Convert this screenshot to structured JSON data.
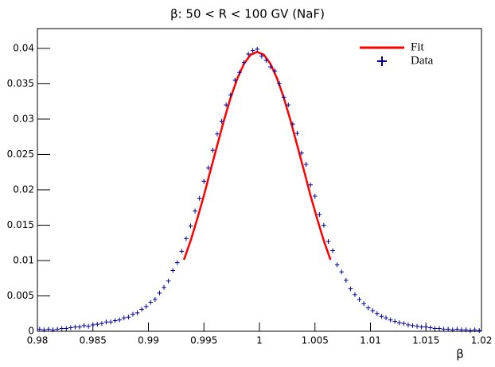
{
  "chart_data": {
    "type": "line",
    "title": "β: 50 < R < 100 GV (NaF)",
    "x_label": "β",
    "xlim": [
      0.98,
      1.02
    ],
    "ylim": [
      0,
      0.0428
    ],
    "xticks": [
      0.98,
      0.985,
      0.99,
      0.995,
      1,
      1.005,
      1.01,
      1.015,
      1.02
    ],
    "yticks": [
      0,
      0.005,
      0.01,
      0.015,
      0.02,
      0.025,
      0.03,
      0.035,
      0.04
    ],
    "legend": "top-right",
    "series": [
      {
        "name": "Fit",
        "color": "#ff0000",
        "kind": "line",
        "x": [
          0.9932,
          0.9938,
          0.9944,
          0.995,
          0.9956,
          0.9962,
          0.9968,
          0.9974,
          0.998,
          0.9986,
          0.9992,
          0.9998,
          1.0004,
          1.001,
          1.0016,
          1.0022,
          1.0028,
          1.0034,
          1.004,
          1.0046,
          1.0052,
          1.0058,
          1.0064
        ],
        "values": [
          0.0101,
          0.0128,
          0.0159,
          0.0192,
          0.0228,
          0.0263,
          0.0298,
          0.033,
          0.0357,
          0.0378,
          0.0391,
          0.0395,
          0.0391,
          0.0378,
          0.0357,
          0.033,
          0.0298,
          0.0263,
          0.0228,
          0.0192,
          0.0159,
          0.0128,
          0.0101
        ]
      },
      {
        "name": "Data",
        "color": "#000099",
        "kind": "marker",
        "x": [
          0.9802,
          0.9806,
          0.981,
          0.9814,
          0.9818,
          0.9822,
          0.9826,
          0.983,
          0.9834,
          0.9838,
          0.9842,
          0.9846,
          0.985,
          0.9854,
          0.9858,
          0.9862,
          0.9866,
          0.987,
          0.9874,
          0.9878,
          0.9882,
          0.9886,
          0.989,
          0.9894,
          0.9898,
          0.9902,
          0.9906,
          0.991,
          0.9914,
          0.9918,
          0.9922,
          0.9926,
          0.993,
          0.9934,
          0.9938,
          0.9942,
          0.9946,
          0.995,
          0.9954,
          0.9958,
          0.9962,
          0.9966,
          0.997,
          0.9974,
          0.9978,
          0.9982,
          0.9986,
          0.999,
          0.9994,
          0.9998,
          1.0002,
          1.0006,
          1.001,
          1.0014,
          1.0018,
          1.0022,
          1.0026,
          1.003,
          1.0034,
          1.0038,
          1.0042,
          1.0046,
          1.005,
          1.0054,
          1.0058,
          1.0062,
          1.0066,
          1.007,
          1.0074,
          1.0078,
          1.0082,
          1.0086,
          1.009,
          1.0094,
          1.0098,
          1.0102,
          1.0106,
          1.011,
          1.0114,
          1.0118,
          1.0122,
          1.0126,
          1.013,
          1.0134,
          1.0138,
          1.0142,
          1.0146,
          1.015,
          1.0154,
          1.0158,
          1.0162,
          1.0166,
          1.017,
          1.0174,
          1.0178,
          1.0182,
          1.0186,
          1.019,
          1.0194,
          1.0198
        ],
        "values": [
          0.0003,
          0.0002,
          0.0003,
          0.0002,
          0.0003,
          0.0004,
          0.0004,
          0.0005,
          0.0006,
          0.0006,
          0.0008,
          0.0007,
          0.0009,
          0.001,
          0.0011,
          0.0013,
          0.0013,
          0.0015,
          0.0016,
          0.0019,
          0.002,
          0.0024,
          0.0026,
          0.0031,
          0.0035,
          0.0041,
          0.0045,
          0.0054,
          0.0062,
          0.0071,
          0.0086,
          0.0097,
          0.0113,
          0.0131,
          0.0149,
          0.017,
          0.0188,
          0.0212,
          0.0231,
          0.0256,
          0.0279,
          0.0297,
          0.032,
          0.0334,
          0.0355,
          0.0366,
          0.038,
          0.0392,
          0.0397,
          0.0399,
          0.0389,
          0.0383,
          0.0374,
          0.0368,
          0.035,
          0.0331,
          0.032,
          0.0293,
          0.028,
          0.0252,
          0.0236,
          0.0207,
          0.0191,
          0.0165,
          0.015,
          0.0127,
          0.0114,
          0.0094,
          0.0084,
          0.0072,
          0.006,
          0.0052,
          0.0045,
          0.0039,
          0.0033,
          0.0029,
          0.0025,
          0.0021,
          0.0019,
          0.0016,
          0.0014,
          0.0012,
          0.0011,
          0.0009,
          0.0008,
          0.0007,
          0.0006,
          0.0006,
          0.0005,
          0.0004,
          0.0004,
          0.0003,
          0.0003,
          0.0002,
          0.0003,
          0.0002,
          0.0002,
          0.0001,
          0.0002,
          0.0001
        ]
      }
    ]
  }
}
